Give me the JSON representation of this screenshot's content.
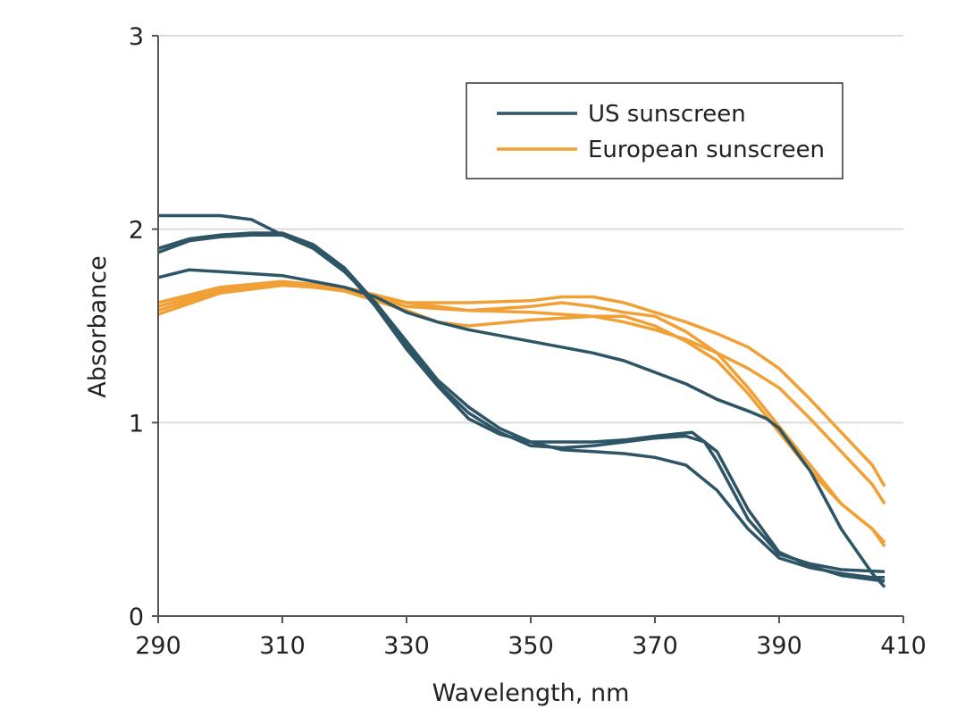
{
  "chart_data": {
    "type": "line",
    "title": "",
    "xlabel": "Wavelength, nm",
    "ylabel": "Absorbance",
    "xlim": [
      290,
      410
    ],
    "ylim": [
      0,
      3
    ],
    "xticks": [
      "290",
      "310",
      "330",
      "350",
      "370",
      "390",
      "410"
    ],
    "yticks": [
      "0",
      "1",
      "2",
      "3"
    ],
    "grid": true,
    "legend_position": "top-right",
    "legend": [
      {
        "name": "US sunscreen",
        "color": "#2e5566"
      },
      {
        "name": "European sunscreen",
        "color": "#f0a035"
      }
    ],
    "series": [
      {
        "name": "US sunscreen",
        "group": 0,
        "x": [
          290,
          300,
          305,
          310,
          315,
          320,
          325,
          330,
          335,
          340,
          345,
          350,
          355,
          360,
          365,
          370,
          375,
          380,
          385,
          390,
          395,
          400,
          405,
          407
        ],
        "y": [
          2.07,
          2.07,
          2.05,
          1.97,
          1.9,
          1.78,
          1.62,
          1.42,
          1.22,
          1.08,
          0.97,
          0.9,
          0.86,
          0.85,
          0.84,
          0.82,
          0.78,
          0.65,
          0.45,
          0.3,
          0.25,
          0.22,
          0.2,
          0.2
        ]
      },
      {
        "name": "US sunscreen",
        "group": 0,
        "x": [
          290,
          295,
          300,
          305,
          310,
          315,
          320,
          325,
          330,
          335,
          340,
          345,
          350,
          355,
          360,
          365,
          370,
          375,
          378,
          380,
          385,
          390,
          395,
          400,
          407
        ],
        "y": [
          1.9,
          1.95,
          1.97,
          1.98,
          1.98,
          1.92,
          1.8,
          1.62,
          1.4,
          1.2,
          1.05,
          0.95,
          0.88,
          0.87,
          0.88,
          0.9,
          0.92,
          0.93,
          0.9,
          0.8,
          0.5,
          0.32,
          0.27,
          0.24,
          0.23
        ]
      },
      {
        "name": "US sunscreen",
        "group": 0,
        "x": [
          290,
          295,
          300,
          305,
          310,
          315,
          320,
          325,
          330,
          335,
          340,
          345,
          350,
          355,
          360,
          365,
          370,
          376,
          380,
          385,
          390,
          395,
          400,
          407
        ],
        "y": [
          1.88,
          1.94,
          1.96,
          1.97,
          1.97,
          1.91,
          1.79,
          1.6,
          1.38,
          1.19,
          1.02,
          0.94,
          0.9,
          0.9,
          0.9,
          0.91,
          0.93,
          0.95,
          0.85,
          0.55,
          0.33,
          0.26,
          0.21,
          0.18
        ]
      },
      {
        "name": "US sunscreen",
        "group": 0,
        "x": [
          290,
          295,
          300,
          305,
          310,
          315,
          320,
          325,
          330,
          335,
          340,
          345,
          350,
          355,
          360,
          365,
          370,
          375,
          380,
          385,
          388,
          390,
          395,
          400,
          405,
          407
        ],
        "y": [
          1.75,
          1.79,
          1.78,
          1.77,
          1.76,
          1.73,
          1.7,
          1.65,
          1.57,
          1.52,
          1.48,
          1.45,
          1.42,
          1.39,
          1.36,
          1.32,
          1.26,
          1.2,
          1.12,
          1.06,
          1.02,
          0.97,
          0.75,
          0.45,
          0.22,
          0.15
        ]
      },
      {
        "name": "European sunscreen",
        "group": 1,
        "x": [
          290,
          300,
          310,
          320,
          330,
          340,
          350,
          355,
          360,
          365,
          370,
          375,
          380,
          385,
          390,
          395,
          400,
          405,
          407
        ],
        "y": [
          1.62,
          1.7,
          1.73,
          1.7,
          1.62,
          1.62,
          1.63,
          1.65,
          1.65,
          1.62,
          1.57,
          1.52,
          1.46,
          1.39,
          1.28,
          1.12,
          0.95,
          0.78,
          0.67
        ]
      },
      {
        "name": "European sunscreen",
        "group": 1,
        "x": [
          290,
          300,
          310,
          320,
          330,
          340,
          350,
          360,
          365,
          370,
          375,
          380,
          385,
          390,
          395,
          400,
          405,
          407
        ],
        "y": [
          1.6,
          1.69,
          1.72,
          1.69,
          1.6,
          1.58,
          1.57,
          1.55,
          1.52,
          1.48,
          1.43,
          1.36,
          1.28,
          1.18,
          1.02,
          0.85,
          0.68,
          0.58
        ]
      },
      {
        "name": "European sunscreen",
        "group": 1,
        "x": [
          290,
          300,
          310,
          320,
          330,
          335,
          340,
          350,
          360,
          365,
          370,
          375,
          380,
          385,
          390,
          395,
          400,
          405,
          407
        ],
        "y": [
          1.58,
          1.68,
          1.72,
          1.68,
          1.58,
          1.52,
          1.5,
          1.53,
          1.55,
          1.55,
          1.5,
          1.42,
          1.32,
          1.15,
          0.95,
          0.75,
          0.58,
          0.45,
          0.38
        ]
      },
      {
        "name": "European sunscreen",
        "group": 1,
        "x": [
          290,
          300,
          310,
          320,
          330,
          340,
          350,
          355,
          360,
          365,
          370,
          375,
          380,
          385,
          390,
          395,
          400,
          405,
          407
        ],
        "y": [
          1.56,
          1.67,
          1.71,
          1.69,
          1.62,
          1.58,
          1.6,
          1.62,
          1.6,
          1.57,
          1.55,
          1.47,
          1.36,
          1.18,
          0.98,
          0.78,
          0.58,
          0.45,
          0.36
        ]
      }
    ]
  }
}
